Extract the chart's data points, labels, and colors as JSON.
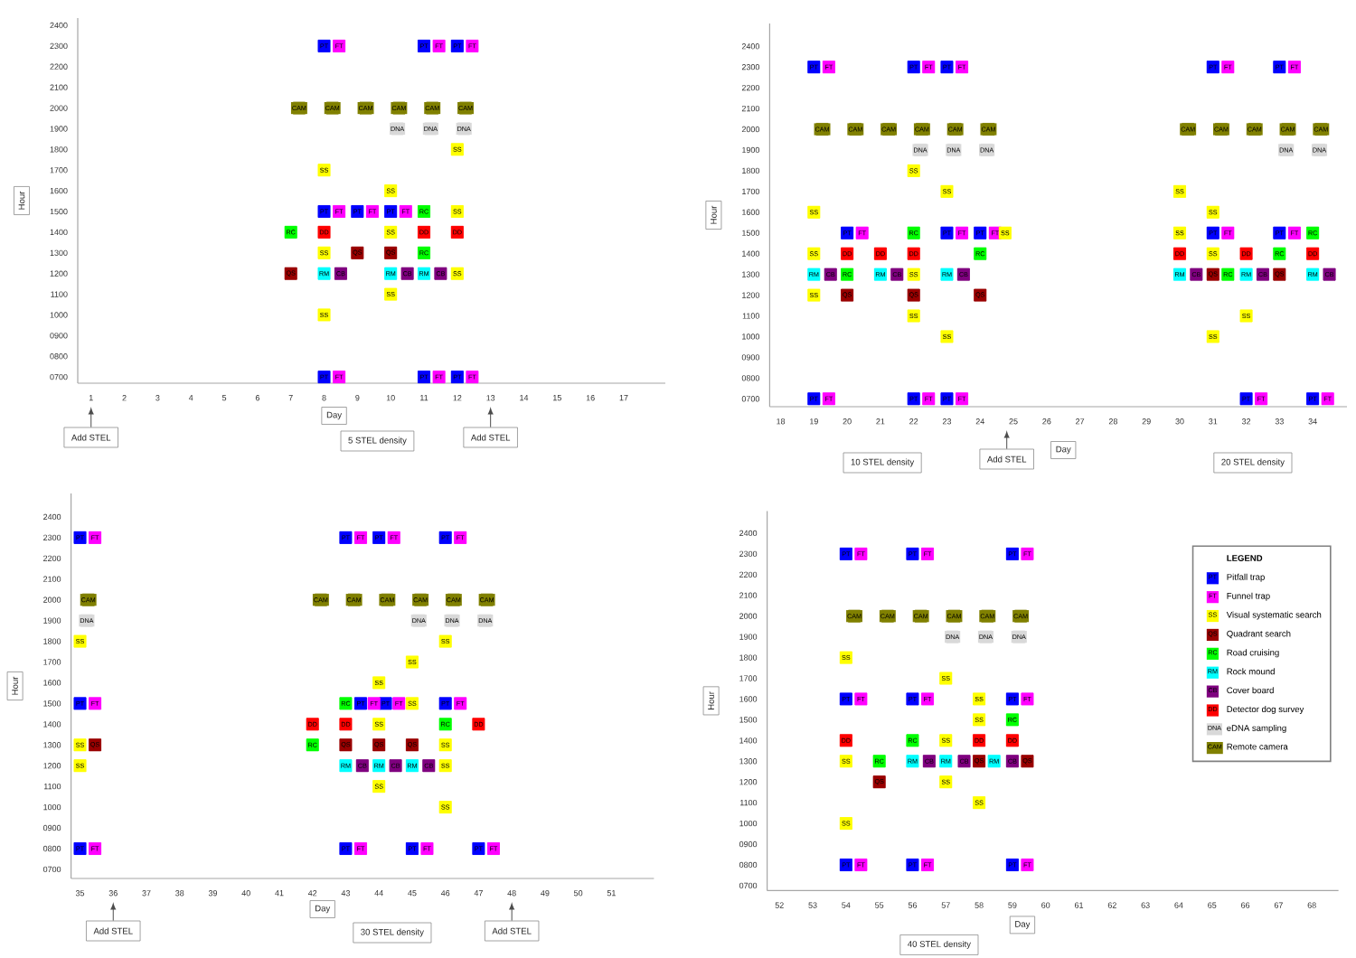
{
  "chart_data": [
    {
      "type": "scatter",
      "xlabel": "Day",
      "ylabel": "Hour",
      "marker": "square",
      "xlim": [
        0.6,
        18.25
      ],
      "ylim": [
        670,
        2435
      ],
      "xticks": [
        1,
        2,
        3,
        4,
        5,
        6,
        7,
        8,
        9,
        10,
        11,
        12,
        13,
        14,
        15,
        16,
        17
      ],
      "yticks": [
        {
          "value": 700,
          "label": "0700"
        },
        {
          "value": 800,
          "label": "0800"
        },
        {
          "value": 900,
          "label": "0900"
        },
        1000,
        1100,
        1200,
        1300,
        1400,
        1500,
        1600,
        1700,
        1800,
        1900,
        2000,
        2100,
        2200,
        2300,
        2400
      ],
      "annotations": [
        "Add STEL",
        "Add STEL",
        "5 STEL density"
      ],
      "series": [
        {
          "color": "#0000ff",
          "x": [
            8,
            11,
            12,
            8,
            9,
            10,
            8,
            11,
            12
          ],
          "values": [
            2300,
            2300,
            2300,
            1500,
            1500,
            1500,
            700,
            700,
            700
          ],
          "value_labels": [
            "PT",
            "PT",
            "PT",
            "PT",
            "PT",
            "PT",
            "PT",
            "PT",
            "PT"
          ]
        },
        {
          "color": "#ff00ff",
          "x": [
            8.45,
            11.45,
            12.45,
            8.45,
            9.45,
            10.45,
            8.45,
            11.45,
            12.45
          ],
          "values": [
            2300,
            2300,
            2300,
            1500,
            1500,
            1500,
            700,
            700,
            700
          ],
          "value_labels": [
            "FT",
            "FT",
            "FT",
            "FT",
            "FT",
            "FT",
            "FT",
            "FT",
            "FT"
          ]
        },
        {
          "color": "#ffff00",
          "x": [
            12,
            8,
            10,
            12,
            10,
            8,
            12,
            10,
            8
          ],
          "values": [
            1800,
            1700,
            1600,
            1500,
            1400,
            1300,
            1200,
            1100,
            1000
          ],
          "value_labels": [
            "SS",
            "SS",
            "SS",
            "SS",
            "SS",
            "SS",
            "SS",
            "SS",
            "SS"
          ]
        },
        {
          "color": "#990000",
          "x": [
            9,
            10,
            7
          ],
          "values": [
            1300,
            1300,
            1200
          ],
          "value_labels": [
            "QS",
            "QS",
            "QS"
          ]
        },
        {
          "color": "#00ff00",
          "x": [
            11,
            7,
            11
          ],
          "values": [
            1500,
            1400,
            1300
          ],
          "value_labels": [
            "RC",
            "RC",
            "RC"
          ]
        },
        {
          "color": "#00ffff",
          "x": [
            8,
            10,
            11
          ],
          "values": [
            1200,
            1200,
            1200
          ],
          "value_labels": [
            "RM",
            "RM",
            "RM"
          ]
        },
        {
          "color": "#7f007f",
          "x": [
            8.5,
            10.5,
            11.5
          ],
          "values": [
            1200,
            1200,
            1200
          ],
          "value_labels": [
            "CB",
            "CB",
            "CB"
          ]
        },
        {
          "color": "#ff0000",
          "x": [
            8,
            11,
            12
          ],
          "values": [
            1400,
            1400,
            1400
          ],
          "value_labels": [
            "DD",
            "DD",
            "DD"
          ]
        },
        {
          "color": "#d9d9d9",
          "x": [
            10.2,
            11.2,
            12.2
          ],
          "values": [
            1900,
            1900,
            1900
          ],
          "value_labels": [
            "DNA",
            "DNA",
            "DNA"
          ]
        },
        {
          "color": "#808000",
          "x": [
            7.25,
            8.25,
            9.25,
            10.25,
            11.25,
            12.25
          ],
          "values": [
            2000,
            2000,
            2000,
            2000,
            2000,
            2000
          ],
          "value_labels": [
            "CAM",
            "CAM",
            "CAM",
            "CAM",
            "CAM",
            "CAM"
          ]
        }
      ]
    },
    {
      "type": "scatter",
      "xlabel": "Day",
      "ylabel": "Hour",
      "marker": "square",
      "xlim": [
        17.67,
        35.03
      ],
      "ylim": [
        662,
        2510
      ],
      "xticks": [
        18,
        19,
        20,
        21,
        22,
        23,
        24,
        25,
        26,
        27,
        28,
        29,
        30,
        31,
        32,
        33,
        34
      ],
      "yticks": [
        {
          "value": 700,
          "label": "0700"
        },
        {
          "value": 800,
          "label": "0800"
        },
        {
          "value": 900,
          "label": "0900"
        },
        1000,
        1100,
        1200,
        1300,
        1400,
        1500,
        1600,
        1700,
        1800,
        1900,
        2000,
        2100,
        2200,
        2300,
        2400
      ],
      "annotations": [
        "10 STEL density",
        "Add STEL",
        "20 STEL density"
      ],
      "series": [
        {
          "color": "#0000ff",
          "x": [
            19,
            22,
            23,
            31,
            33,
            20,
            23,
            24,
            31,
            33,
            19,
            22,
            23,
            32,
            34
          ],
          "values": [
            2300,
            2300,
            2300,
            2300,
            2300,
            1500,
            1500,
            1500,
            1500,
            1500,
            700,
            700,
            700,
            700,
            700
          ],
          "value_labels": [
            "PT",
            "PT",
            "PT",
            "PT",
            "PT",
            "PT",
            "PT",
            "PT",
            "PT",
            "PT",
            "PT",
            "PT",
            "PT",
            "PT",
            "PT"
          ]
        },
        {
          "color": "#ff00ff",
          "x": [
            19.45,
            22.45,
            23.45,
            31.45,
            33.45,
            20.45,
            23.45,
            24.45,
            31.45,
            33.45,
            19.45,
            22.45,
            23.45,
            32.45,
            34.45
          ],
          "values": [
            2300,
            2300,
            2300,
            2300,
            2300,
            1500,
            1500,
            1500,
            1500,
            1500,
            700,
            700,
            700,
            700,
            700
          ],
          "value_labels": [
            "FT",
            "FT",
            "FT",
            "FT",
            "FT",
            "FT",
            "FT",
            "FT",
            "FT",
            "FT",
            "FT",
            "FT",
            "FT",
            "FT",
            "FT"
          ]
        },
        {
          "color": "#ffff00",
          "x": [
            22,
            23,
            30,
            19,
            31,
            24.75,
            30,
            19,
            31,
            22,
            19,
            22,
            32,
            23,
            31
          ],
          "values": [
            1800,
            1700,
            1700,
            1600,
            1600,
            1500,
            1500,
            1400,
            1400,
            1300,
            1200,
            1100,
            1100,
            1000,
            1000
          ],
          "value_labels": [
            "SS",
            "SS",
            "SS",
            "SS",
            "SS",
            "SS",
            "SS",
            "SS",
            "SS",
            "SS",
            "SS",
            "SS",
            "SS",
            "SS",
            "SS"
          ]
        },
        {
          "color": "#990000",
          "x": [
            31,
            33,
            20,
            22,
            24
          ],
          "values": [
            1300,
            1300,
            1200,
            1200,
            1200
          ],
          "value_labels": [
            "QS",
            "QS",
            "QS",
            "QS",
            "QS"
          ]
        },
        {
          "color": "#00ff00",
          "x": [
            22,
            34,
            24,
            33,
            20,
            31.45
          ],
          "values": [
            1500,
            1500,
            1400,
            1400,
            1300,
            1300
          ],
          "value_labels": [
            "RC",
            "RC",
            "RC",
            "RC",
            "RC",
            "RC"
          ]
        },
        {
          "color": "#00ffff",
          "x": [
            19,
            21,
            23,
            30,
            32,
            34
          ],
          "values": [
            1300,
            1300,
            1300,
            1300,
            1300,
            1300
          ],
          "value_labels": [
            "RM",
            "RM",
            "RM",
            "RM",
            "RM",
            "RM"
          ]
        },
        {
          "color": "#7f007f",
          "x": [
            19.5,
            21.5,
            23.5,
            30.5,
            32.5,
            34.5
          ],
          "values": [
            1300,
            1300,
            1300,
            1300,
            1300,
            1300
          ],
          "value_labels": [
            "CB",
            "CB",
            "CB",
            "CB",
            "CB",
            "CB"
          ]
        },
        {
          "color": "#ff0000",
          "x": [
            20,
            21,
            22,
            30,
            32,
            34
          ],
          "values": [
            1400,
            1400,
            1400,
            1400,
            1400,
            1400
          ],
          "value_labels": [
            "DD",
            "DD",
            "DD",
            "DD",
            "DD",
            "DD"
          ]
        },
        {
          "color": "#d9d9d9",
          "x": [
            22.2,
            23.2,
            24.2,
            33.2,
            34.2
          ],
          "values": [
            1900,
            1900,
            1900,
            1900,
            1900
          ],
          "value_labels": [
            "DNA",
            "DNA",
            "DNA",
            "DNA",
            "DNA"
          ]
        },
        {
          "color": "#808000",
          "x": [
            19.25,
            20.25,
            21.25,
            22.25,
            23.25,
            24.25,
            30.25,
            31.25,
            32.25,
            33.25,
            34.25
          ],
          "values": [
            2000,
            2000,
            2000,
            2000,
            2000,
            2000,
            2000,
            2000,
            2000,
            2000,
            2000
          ],
          "value_labels": [
            "CAM",
            "CAM",
            "CAM",
            "CAM",
            "CAM",
            "CAM",
            "CAM",
            "CAM",
            "CAM",
            "CAM",
            "CAM"
          ]
        }
      ]
    },
    {
      "type": "scatter",
      "xlabel": "Day",
      "ylabel": "Hour",
      "marker": "square",
      "xlim": [
        34.73,
        52.28
      ],
      "ylim": [
        656,
        2513
      ],
      "xticks": [
        35,
        36,
        37,
        38,
        39,
        40,
        41,
        42,
        43,
        44,
        45,
        46,
        47,
        48,
        49,
        50,
        51
      ],
      "yticks": [
        {
          "value": 700,
          "label": "0700"
        },
        {
          "value": 800,
          "label": "0800"
        },
        {
          "value": 900,
          "label": "0900"
        },
        1000,
        1100,
        1200,
        1300,
        1400,
        1500,
        1600,
        1700,
        1800,
        1900,
        2000,
        2100,
        2200,
        2300,
        2400
      ],
      "annotations": [
        "Add STEL",
        "30 STEL density",
        "Add STEL"
      ],
      "series": [
        {
          "color": "#0000ff",
          "x": [
            35,
            43,
            44,
            46,
            35,
            43.45,
            44.2,
            46,
            35,
            43,
            45,
            47
          ],
          "values": [
            2300,
            2300,
            2300,
            2300,
            1500,
            1500,
            1500,
            1500,
            800,
            800,
            800,
            800
          ],
          "value_labels": [
            "PT",
            "PT",
            "PT",
            "PT",
            "PT",
            "PT",
            "PT",
            "PT",
            "PT",
            "PT",
            "PT",
            "PT"
          ]
        },
        {
          "color": "#ff00ff",
          "x": [
            35.45,
            43.45,
            44.45,
            46.45,
            35.45,
            43.85,
            44.6,
            46.45,
            35.45,
            43.45,
            45.45,
            47.45
          ],
          "values": [
            2300,
            2300,
            2300,
            2300,
            1500,
            1500,
            1500,
            1500,
            800,
            800,
            800,
            800
          ],
          "value_labels": [
            "FT",
            "FT",
            "FT",
            "FT",
            "FT",
            "FT",
            "FT",
            "FT",
            "FT",
            "FT",
            "FT",
            "FT"
          ]
        },
        {
          "color": "#ffff00",
          "x": [
            35,
            46,
            45,
            44,
            45,
            44,
            35,
            46,
            35,
            46,
            44,
            46
          ],
          "values": [
            1800,
            1800,
            1700,
            1600,
            1500,
            1400,
            1300,
            1300,
            1200,
            1200,
            1100,
            1000
          ],
          "value_labels": [
            "SS",
            "SS",
            "SS",
            "SS",
            "SS",
            "SS",
            "SS",
            "SS",
            "SS",
            "SS",
            "SS",
            "SS"
          ]
        },
        {
          "color": "#990000",
          "x": [
            35.45,
            43,
            44,
            45
          ],
          "values": [
            1300,
            1300,
            1300,
            1300
          ],
          "value_labels": [
            "QS",
            "QS",
            "QS",
            "QS"
          ]
        },
        {
          "color": "#00ff00",
          "x": [
            43,
            46,
            42
          ],
          "values": [
            1500,
            1400,
            1300
          ],
          "value_labels": [
            "RC",
            "RC",
            "RC"
          ]
        },
        {
          "color": "#00ffff",
          "x": [
            43,
            44,
            45
          ],
          "values": [
            1200,
            1200,
            1200
          ],
          "value_labels": [
            "RM",
            "RM",
            "RM"
          ]
        },
        {
          "color": "#7f007f",
          "x": [
            43.5,
            44.5,
            45.5
          ],
          "values": [
            1200,
            1200,
            1200
          ],
          "value_labels": [
            "CB",
            "CB",
            "CB"
          ]
        },
        {
          "color": "#ff0000",
          "x": [
            42,
            43,
            47
          ],
          "values": [
            1400,
            1400,
            1400
          ],
          "value_labels": [
            "DD",
            "DD",
            "DD"
          ]
        },
        {
          "color": "#d9d9d9",
          "x": [
            35.2,
            45.2,
            46.2,
            47.2
          ],
          "values": [
            1900,
            1900,
            1900,
            1900
          ],
          "value_labels": [
            "DNA",
            "DNA",
            "DNA",
            "DNA"
          ]
        },
        {
          "color": "#808000",
          "x": [
            35.25,
            42.25,
            43.25,
            44.25,
            45.25,
            46.25,
            47.25
          ],
          "values": [
            2000,
            2000,
            2000,
            2000,
            2000,
            2000,
            2000
          ],
          "value_labels": [
            "CAM",
            "CAM",
            "CAM",
            "CAM",
            "CAM",
            "CAM",
            "CAM"
          ]
        }
      ]
    },
    {
      "type": "scatter",
      "xlabel": "Day",
      "ylabel": "Hour",
      "marker": "square",
      "xlim": [
        51.63,
        68.8
      ],
      "ylim": [
        676,
        2507
      ],
      "xticks": [
        52,
        53,
        54,
        55,
        56,
        57,
        58,
        59,
        60,
        61,
        62,
        63,
        64,
        65,
        66,
        67,
        68
      ],
      "yticks": [
        {
          "value": 700,
          "label": "0700"
        },
        {
          "value": 800,
          "label": "0800"
        },
        {
          "value": 900,
          "label": "0900"
        },
        1000,
        1100,
        1200,
        1300,
        1400,
        1500,
        1600,
        1700,
        1800,
        1900,
        2000,
        2100,
        2200,
        2300,
        2400
      ],
      "annotations": [
        "40 STEL density"
      ],
      "legend": "top right",
      "legend_title": "LEGEND",
      "series": [
        {
          "name": "Pitfall trap",
          "color": "#0000ff",
          "x": [
            54,
            56,
            59,
            54,
            56,
            59,
            54,
            56,
            59
          ],
          "values": [
            2300,
            2300,
            2300,
            1600,
            1600,
            1600,
            800,
            800,
            800
          ],
          "value_labels": [
            "PT",
            "PT",
            "PT",
            "PT",
            "PT",
            "PT",
            "PT",
            "PT",
            "PT"
          ]
        },
        {
          "name": "Funnel trap",
          "color": "#ff00ff",
          "x": [
            54.45,
            56.45,
            59.45,
            54.45,
            56.45,
            59.45,
            54.45,
            56.45,
            59.45
          ],
          "values": [
            2300,
            2300,
            2300,
            1600,
            1600,
            1600,
            800,
            800,
            800
          ],
          "value_labels": [
            "FT",
            "FT",
            "FT",
            "FT",
            "FT",
            "FT",
            "FT",
            "FT",
            "FT"
          ]
        },
        {
          "name": "Visual systematic search",
          "color": "#ffff00",
          "x": [
            54,
            57,
            58,
            58,
            57,
            54,
            57,
            58,
            54
          ],
          "values": [
            1800,
            1700,
            1600,
            1500,
            1400,
            1300,
            1200,
            1100,
            1000
          ],
          "value_labels": [
            "SS",
            "SS",
            "SS",
            "SS",
            "SS",
            "SS",
            "SS",
            "SS",
            "SS"
          ]
        },
        {
          "name": "Quadrant search",
          "color": "#990000",
          "x": [
            55,
            58,
            59.45
          ],
          "values": [
            1200,
            1300,
            1300
          ],
          "value_labels": [
            "QS",
            "QS",
            "QS"
          ]
        },
        {
          "name": "Road cruising",
          "color": "#00ff00",
          "x": [
            59,
            56,
            55
          ],
          "values": [
            1500,
            1400,
            1300
          ],
          "value_labels": [
            "RC",
            "RC",
            "RC"
          ]
        },
        {
          "name": "Rock mound",
          "color": "#00ffff",
          "x": [
            56,
            57,
            58.45
          ],
          "values": [
            1300,
            1300,
            1300
          ],
          "value_labels": [
            "RM",
            "RM",
            "RM"
          ]
        },
        {
          "name": "Cover board",
          "color": "#7f007f",
          "x": [
            56.5,
            57.55,
            59
          ],
          "values": [
            1300,
            1300,
            1300
          ],
          "value_labels": [
            "CB",
            "CB",
            "CB"
          ]
        },
        {
          "name": "Detector dog survey",
          "color": "#ff0000",
          "x": [
            54,
            58,
            59
          ],
          "values": [
            1400,
            1400,
            1400
          ],
          "value_labels": [
            "DD",
            "DD",
            "DD"
          ]
        },
        {
          "name": "eDNA sampling",
          "color": "#d9d9d9",
          "x": [
            57.2,
            58.2,
            59.2
          ],
          "values": [
            1900,
            1900,
            1900
          ],
          "value_labels": [
            "DNA",
            "DNA",
            "DNA"
          ]
        },
        {
          "name": "Remote camera",
          "color": "#808000",
          "x": [
            54.25,
            55.25,
            56.25,
            57.25,
            58.25,
            59.25
          ],
          "values": [
            2000,
            2000,
            2000,
            2000,
            2000,
            2000
          ],
          "value_labels": [
            "CAM",
            "CAM",
            "CAM",
            "CAM",
            "CAM",
            "CAM"
          ]
        }
      ]
    }
  ]
}
